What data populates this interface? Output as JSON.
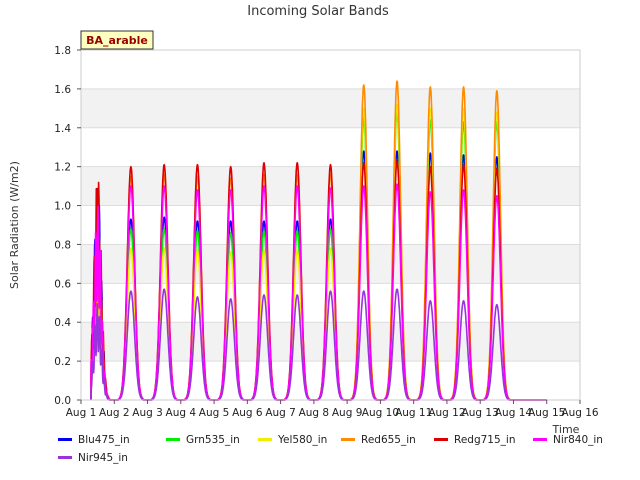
{
  "chart_data": {
    "type": "line",
    "title": "Incoming Solar Bands",
    "xlabel": "Time",
    "ylabel": "Solar Radiation (W/m2)",
    "ylim": [
      0,
      1.8
    ],
    "yticks": [
      "0.0",
      "0.2",
      "0.4",
      "0.6",
      "0.8",
      "1.0",
      "1.2",
      "1.4",
      "1.6",
      "1.8"
    ],
    "xlim": [
      1,
      16
    ],
    "xticks": [
      "Aug 1",
      "Aug 2",
      "Aug 3",
      "Aug 4",
      "Aug 5",
      "Aug 6",
      "Aug 7",
      "Aug 8",
      "Aug 9",
      "Aug 10",
      "Aug 11",
      "Aug 12",
      "Aug 13",
      "Aug 14",
      "Aug 15",
      "Aug 16"
    ],
    "annotation": "BA_arable",
    "grid": true,
    "legend_position": "bottom",
    "days": [
      1.5,
      2.5,
      3.5,
      4.5,
      5.5,
      6.5,
      7.5,
      8.5,
      9.5,
      10.5,
      11.5,
      12.5,
      13.5
    ],
    "series": [
      {
        "name": "Blu475_in",
        "color": "#0000ee",
        "peaks": [
          1.12,
          0.93,
          0.94,
          0.92,
          0.92,
          0.92,
          0.92,
          0.93,
          1.28,
          1.28,
          1.27,
          1.26,
          1.25
        ]
      },
      {
        "name": "Grn535_in",
        "color": "#00ee00",
        "peaks": [
          0.9,
          0.88,
          0.88,
          0.87,
          0.86,
          0.87,
          0.87,
          0.88,
          1.45,
          1.48,
          1.44,
          1.43,
          1.43
        ]
      },
      {
        "name": "Yel580_in",
        "color": "#eeee00",
        "peaks": [
          0.8,
          0.78,
          0.78,
          0.77,
          0.76,
          0.77,
          0.77,
          0.78,
          1.5,
          1.52,
          1.5,
          1.5,
          1.48
        ]
      },
      {
        "name": "Red655_in",
        "color": "#ff8c00",
        "peaks": [
          0.95,
          1.15,
          1.16,
          1.15,
          1.14,
          1.16,
          1.16,
          1.16,
          1.62,
          1.64,
          1.61,
          1.61,
          1.59
        ]
      },
      {
        "name": "Redg715_in",
        "color": "#dd0000",
        "peaks": [
          1.17,
          1.2,
          1.21,
          1.21,
          1.2,
          1.22,
          1.22,
          1.21,
          1.22,
          1.23,
          1.2,
          1.21,
          1.19
        ]
      },
      {
        "name": "Nir840_in",
        "color": "#ff00ff",
        "peaks": [
          1.0,
          1.1,
          1.1,
          1.08,
          1.08,
          1.1,
          1.1,
          1.09,
          1.1,
          1.11,
          1.07,
          1.08,
          1.05
        ]
      },
      {
        "name": "Nir945_in",
        "color": "#9933dd",
        "peaks": [
          0.5,
          0.56,
          0.57,
          0.53,
          0.52,
          0.54,
          0.54,
          0.56,
          0.56,
          0.57,
          0.51,
          0.51,
          0.49
        ]
      }
    ]
  }
}
